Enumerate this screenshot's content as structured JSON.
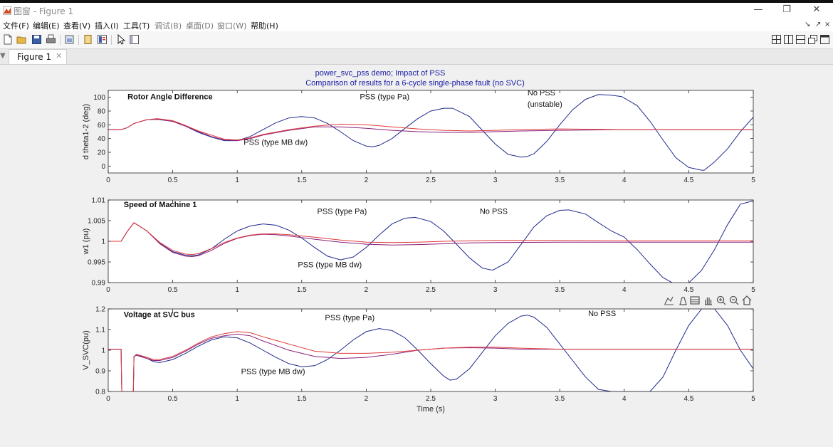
{
  "window": {
    "title_prefix": "图窗",
    "title_sep": " - ",
    "title_name": "Figure 1",
    "minimize": "—",
    "restore": "❐",
    "close": "✕"
  },
  "menu": {
    "items": [
      "文件(F)",
      "编辑(E)",
      "查看(V)",
      "插入(I)",
      "工具(T)",
      "调试(B)",
      "桌面(D)",
      "窗口(W)",
      "帮助(H)"
    ],
    "dim_items": [
      5,
      6,
      7
    ],
    "dock_icons": [
      "↘",
      "↗",
      "×"
    ]
  },
  "toolbar": {
    "icons": [
      "new-file-icon",
      "open-folder-icon",
      "save-icon",
      "print-icon",
      "print-preview-icon",
      "dock-figure-icon",
      "insert-colorbar-icon",
      "pointer-arrow-icon",
      "property-editor-icon"
    ],
    "layout_icons": [
      "tile-grid-icon",
      "split-columns-icon",
      "split-rows-icon",
      "float-windows-icon",
      "single-window-icon"
    ]
  },
  "tabs": [
    {
      "label": "Figure 1",
      "close": "✕"
    }
  ],
  "tab_arrow": "▼",
  "figure": {
    "title_line1": "power_svc_pss demo;  Impact of PSS",
    "title_line2": "Comparison of results for a 6-cycle single-phase fault (no SVC)",
    "axes_toolbar_icons": [
      "export-icon",
      "brush-icon",
      "datatip-icon",
      "pan-hand-icon",
      "zoom-in-icon",
      "zoom-out-icon",
      "home-icon"
    ]
  },
  "colors": {
    "no_pss": "#1f2a8c",
    "pss_pa": "#e03a3a",
    "pss_mb": "#8a1f7a",
    "title": "#1a1aa6"
  },
  "chart_data": [
    {
      "type": "line",
      "title": "Rotor Angle Difference",
      "xlabel": "",
      "ylabel": "d theta1-2 (deg)",
      "xlim": [
        0,
        5
      ],
      "ylim": [
        -10,
        110
      ],
      "xticks": [
        0,
        0.5,
        1,
        1.5,
        2,
        2.5,
        3,
        3.5,
        4,
        4.5,
        5
      ],
      "xtick_labels": [
        "0",
        "0.5",
        "1",
        "1.5",
        "2",
        "2.5",
        "3",
        "3.5",
        "4",
        "4.5",
        "5"
      ],
      "yticks": [
        0,
        20,
        40,
        60,
        80,
        100
      ],
      "ytick_labels": [
        "0",
        "20",
        "40",
        "60",
        "80",
        "100"
      ],
      "grid": false,
      "series": [
        {
          "key": "no_pss",
          "x": [
            0,
            0.1,
            0.15,
            0.2,
            0.3,
            0.38,
            0.5,
            0.6,
            0.7,
            0.8,
            0.9,
            1.0,
            1.1,
            1.2,
            1.3,
            1.4,
            1.5,
            1.6,
            1.7,
            1.8,
            1.9,
            2.0,
            2.05,
            2.1,
            2.2,
            2.3,
            2.4,
            2.5,
            2.6,
            2.67,
            2.8,
            2.9,
            3.0,
            3.1,
            3.2,
            3.25,
            3.3,
            3.4,
            3.5,
            3.6,
            3.7,
            3.8,
            3.9,
            3.98,
            4.1,
            4.2,
            4.3,
            4.4,
            4.5,
            4.6,
            4.62,
            4.7,
            4.8,
            4.9,
            5.0
          ],
          "y": [
            53,
            53,
            56,
            62,
            67.5,
            68,
            65,
            58,
            49,
            42,
            37,
            37,
            43,
            53,
            63,
            70,
            72,
            70,
            62,
            50,
            37,
            29,
            28,
            30,
            40,
            55,
            69,
            80,
            84,
            84,
            72,
            52,
            32,
            17,
            13,
            14,
            18,
            36,
            60,
            82,
            97,
            104,
            103,
            101,
            88,
            65,
            38,
            12,
            -2,
            -6,
            -6,
            6,
            25,
            50,
            71
          ]
        },
        {
          "key": "pss_pa",
          "x": [
            0,
            0.1,
            0.15,
            0.2,
            0.3,
            0.38,
            0.5,
            0.6,
            0.7,
            0.8,
            0.9,
            1.0,
            1.1,
            1.2,
            1.4,
            1.6,
            1.8,
            2.0,
            2.2,
            2.4,
            2.6,
            2.8,
            3.0,
            3.2,
            3.5,
            4.0,
            4.5,
            5.0
          ],
          "y": [
            53,
            53,
            56,
            62,
            67.5,
            69,
            66,
            59,
            51,
            45,
            39,
            38,
            41,
            46,
            53,
            58,
            61,
            60,
            57,
            54,
            52,
            51,
            52,
            53,
            54,
            53,
            53,
            53
          ]
        },
        {
          "key": "pss_mb",
          "x": [
            0,
            0.1,
            0.15,
            0.2,
            0.3,
            0.38,
            0.5,
            0.6,
            0.7,
            0.8,
            0.9,
            1.0,
            1.1,
            1.2,
            1.4,
            1.6,
            1.8,
            2.0,
            2.2,
            2.4,
            2.6,
            2.8,
            3.0,
            3.2,
            3.5,
            4.0,
            4.5,
            5.0
          ],
          "y": [
            53,
            53,
            56,
            62,
            67.5,
            68,
            65,
            58,
            50,
            43,
            38,
            37,
            40,
            45,
            52,
            57,
            57,
            55,
            52,
            50,
            49,
            49,
            50,
            51,
            52,
            53,
            53,
            53
          ]
        }
      ],
      "annotations": [
        {
          "text": "Rotor Angle Difference",
          "x": 0.15,
          "y": 97,
          "bold": true
        },
        {
          "text": "PSS (type Pa)",
          "x": 1.95,
          "y": 97
        },
        {
          "text": "No PSS",
          "x": 3.25,
          "y": 103
        },
        {
          "text": "(unstable)",
          "x": 3.25,
          "y": 86
        },
        {
          "text": "PSS (type MB dw)",
          "x": 1.05,
          "y": 31
        }
      ]
    },
    {
      "type": "line",
      "title": "Speed of Machine 1",
      "xlabel": "",
      "ylabel": "w1 (pu)",
      "xlim": [
        0,
        5
      ],
      "ylim": [
        0.99,
        1.01
      ],
      "xticks": [
        0,
        0.5,
        1,
        1.5,
        2,
        2.5,
        3,
        3.5,
        4,
        4.5,
        5
      ],
      "xtick_labels": [
        "0",
        "0.5",
        "1",
        "1.5",
        "2",
        "2.5",
        "3",
        "3.5",
        "4",
        "4.5",
        "5"
      ],
      "yticks": [
        0.99,
        0.995,
        1,
        1.005,
        1.01
      ],
      "ytick_labels": [
        "0.99",
        "0.995",
        "1",
        "1.005",
        "1.01"
      ],
      "grid": false,
      "series": [
        {
          "key": "no_pss",
          "x": [
            0,
            0.1,
            0.15,
            0.2,
            0.3,
            0.4,
            0.5,
            0.6,
            0.65,
            0.7,
            0.8,
            0.9,
            1.0,
            1.1,
            1.2,
            1.3,
            1.4,
            1.5,
            1.6,
            1.7,
            1.8,
            1.9,
            2.0,
            2.1,
            2.2,
            2.3,
            2.38,
            2.5,
            2.6,
            2.7,
            2.8,
            2.9,
            2.98,
            3.1,
            3.2,
            3.3,
            3.4,
            3.5,
            3.57,
            3.7,
            3.8,
            3.9,
            4.0,
            4.1,
            4.2,
            4.3,
            4.4,
            4.47,
            4.6,
            4.7,
            4.8,
            4.9,
            5.0
          ],
          "y": [
            1.0,
            1.0,
            1.0025,
            1.0045,
            1.0025,
            0.9995,
            0.9975,
            0.9966,
            0.9965,
            0.9967,
            0.9982,
            1.0005,
            1.0025,
            1.0037,
            1.0042,
            1.0039,
            1.0027,
            1.0008,
            0.9985,
            0.9964,
            0.9955,
            0.9962,
            0.9985,
            1.0015,
            1.0042,
            1.0056,
            1.0058,
            1.0048,
            1.0025,
            0.9993,
            0.996,
            0.9935,
            0.993,
            0.995,
            0.9992,
            1.0035,
            1.0062,
            1.0075,
            1.0076,
            1.0066,
            1.0045,
            1.0025,
            1.001,
            0.998,
            0.9945,
            0.9912,
            0.9895,
            0.989,
            0.993,
            0.998,
            1.004,
            1.009,
            1.0098
          ]
        },
        {
          "key": "pss_pa",
          "x": [
            0,
            0.1,
            0.15,
            0.2,
            0.3,
            0.4,
            0.5,
            0.6,
            0.65,
            0.7,
            0.8,
            0.9,
            1.0,
            1.1,
            1.2,
            1.3,
            1.4,
            1.6,
            1.8,
            2.0,
            2.2,
            2.4,
            2.6,
            2.8,
            3.0,
            3.5,
            4.0,
            4.5,
            5.0
          ],
          "y": [
            1.0,
            1.0,
            1.0025,
            1.0045,
            1.0025,
            0.9997,
            0.9978,
            0.9969,
            0.9968,
            0.997,
            0.9982,
            0.9997,
            1.0008,
            1.0015,
            1.0018,
            1.0018,
            1.0016,
            1.001,
            1.0003,
            0.9998,
            0.9997,
            0.9998,
            1.0,
            1.0001,
            1.0002,
            1.0002,
            1.0001,
            1.0001,
            1.0001
          ]
        },
        {
          "key": "pss_mb",
          "x": [
            0,
            0.1,
            0.15,
            0.2,
            0.3,
            0.4,
            0.5,
            0.6,
            0.65,
            0.7,
            0.8,
            0.9,
            1.0,
            1.1,
            1.2,
            1.3,
            1.4,
            1.6,
            1.8,
            2.0,
            2.2,
            2.4,
            2.6,
            2.8,
            3.0,
            3.5,
            4.0,
            4.5,
            5.0
          ],
          "y": [
            1.0,
            1.0,
            1.0025,
            1.0045,
            1.0025,
            0.9994,
            0.9973,
            0.9964,
            0.9963,
            0.9965,
            0.9978,
            0.9995,
            1.0007,
            1.0014,
            1.0017,
            1.0016,
            1.0013,
            1.0005,
            0.9998,
            0.9993,
            0.9991,
            0.9992,
            0.9994,
            0.9996,
            0.9997,
            0.9998,
            0.9998,
            0.9998,
            0.9998
          ]
        }
      ],
      "annotations": [
        {
          "text": "Speed of Machine 1",
          "x": 0.12,
          "y": 1.0083,
          "bold": true
        },
        {
          "text": "PSS (type Pa)",
          "x": 1.62,
          "y": 1.0066
        },
        {
          "text": "No PSS",
          "x": 2.88,
          "y": 1.0066
        },
        {
          "text": "PSS (type MB dw)",
          "x": 1.47,
          "y": 0.9937
        }
      ]
    },
    {
      "type": "line",
      "title": "Voltage at  SVC bus",
      "xlabel": "Time (s)",
      "ylabel": "V_SVC(pu)",
      "xlim": [
        0,
        5
      ],
      "ylim": [
        0.8,
        1.2
      ],
      "xticks": [
        0,
        0.5,
        1,
        1.5,
        2,
        2.5,
        3,
        3.5,
        4,
        4.5,
        5
      ],
      "xtick_labels": [
        "0",
        "0.5",
        "1",
        "1.5",
        "2",
        "2.5",
        "3",
        "3.5",
        "4",
        "4.5",
        "5"
      ],
      "yticks": [
        0.8,
        0.9,
        1,
        1.1,
        1.2
      ],
      "ytick_labels": [
        "0.8",
        "0.9",
        "1",
        "1.1",
        "1.2"
      ],
      "grid": false,
      "series": [
        {
          "key": "no_pss",
          "x": [
            0,
            0.1,
            0.105,
            0.12,
            0.195,
            0.2,
            0.22,
            0.3,
            0.35,
            0.4,
            0.5,
            0.6,
            0.7,
            0.8,
            0.9,
            1.0,
            1.1,
            1.2,
            1.3,
            1.4,
            1.5,
            1.6,
            1.7,
            1.8,
            1.9,
            2.0,
            2.1,
            2.2,
            2.3,
            2.4,
            2.5,
            2.6,
            2.65,
            2.7,
            2.8,
            2.9,
            3.0,
            3.1,
            3.2,
            3.25,
            3.3,
            3.4,
            3.5,
            3.6,
            3.7,
            3.8,
            3.9,
            4.0,
            4.1,
            4.2,
            4.3,
            4.4,
            4.5,
            4.6,
            4.7,
            4.8,
            4.9,
            5.0
          ],
          "y": [
            1.005,
            1.005,
            0.8,
            0.8,
            0.8,
            0.97,
            0.98,
            0.96,
            0.945,
            0.94,
            0.955,
            0.985,
            1.02,
            1.05,
            1.065,
            1.06,
            1.035,
            1.0,
            0.965,
            0.935,
            0.92,
            0.925,
            0.955,
            1.0,
            1.05,
            1.09,
            1.105,
            1.095,
            1.06,
            1.0,
            0.935,
            0.875,
            0.855,
            0.86,
            0.91,
            0.99,
            1.07,
            1.13,
            1.165,
            1.17,
            1.16,
            1.11,
            1.03,
            0.95,
            0.87,
            0.81,
            0.8,
            0.8,
            0.8,
            0.8,
            0.87,
            1.0,
            1.12,
            1.2,
            1.2,
            1.12,
            1.0,
            0.91
          ]
        },
        {
          "key": "pss_pa",
          "x": [
            0,
            0.1,
            0.105,
            0.12,
            0.195,
            0.2,
            0.22,
            0.3,
            0.35,
            0.4,
            0.5,
            0.6,
            0.7,
            0.8,
            0.9,
            1.0,
            1.1,
            1.2,
            1.4,
            1.6,
            1.8,
            2.0,
            2.2,
            2.4,
            2.6,
            2.8,
            3.0,
            3.2,
            3.5,
            4.0,
            4.5,
            5.0
          ],
          "y": [
            1.005,
            1.005,
            0.8,
            0.8,
            0.8,
            0.97,
            0.98,
            0.965,
            0.955,
            0.955,
            0.97,
            1.0,
            1.035,
            1.065,
            1.08,
            1.09,
            1.085,
            1.065,
            1.03,
            0.995,
            0.985,
            0.985,
            0.99,
            1.0,
            1.01,
            1.015,
            1.015,
            1.01,
            1.005,
            1.005,
            1.005,
            1.005
          ]
        },
        {
          "key": "pss_mb",
          "x": [
            0,
            0.1,
            0.105,
            0.12,
            0.195,
            0.2,
            0.22,
            0.3,
            0.35,
            0.4,
            0.5,
            0.6,
            0.7,
            0.8,
            0.9,
            1.0,
            1.1,
            1.2,
            1.4,
            1.6,
            1.8,
            2.0,
            2.2,
            2.4,
            2.6,
            2.8,
            3.0,
            3.2,
            3.5,
            4.0,
            4.5,
            5.0
          ],
          "y": [
            1.005,
            1.005,
            0.8,
            0.8,
            0.8,
            0.97,
            0.975,
            0.96,
            0.95,
            0.95,
            0.965,
            0.995,
            1.03,
            1.058,
            1.07,
            1.078,
            1.07,
            1.045,
            1.0,
            0.97,
            0.96,
            0.965,
            0.98,
            1.0,
            1.01,
            1.012,
            1.01,
            1.005,
            1.005,
            1.005,
            1.005,
            1.005
          ]
        }
      ],
      "annotations": [
        {
          "text": "Voltage at  SVC bus",
          "x": 0.12,
          "y": 1.16,
          "bold": true
        },
        {
          "text": "PSS (type Pa)",
          "x": 1.68,
          "y": 1.145
        },
        {
          "text": "No PSS",
          "x": 3.72,
          "y": 1.165
        },
        {
          "text": "PSS (type MB dw)",
          "x": 1.03,
          "y": 0.885
        }
      ]
    }
  ]
}
